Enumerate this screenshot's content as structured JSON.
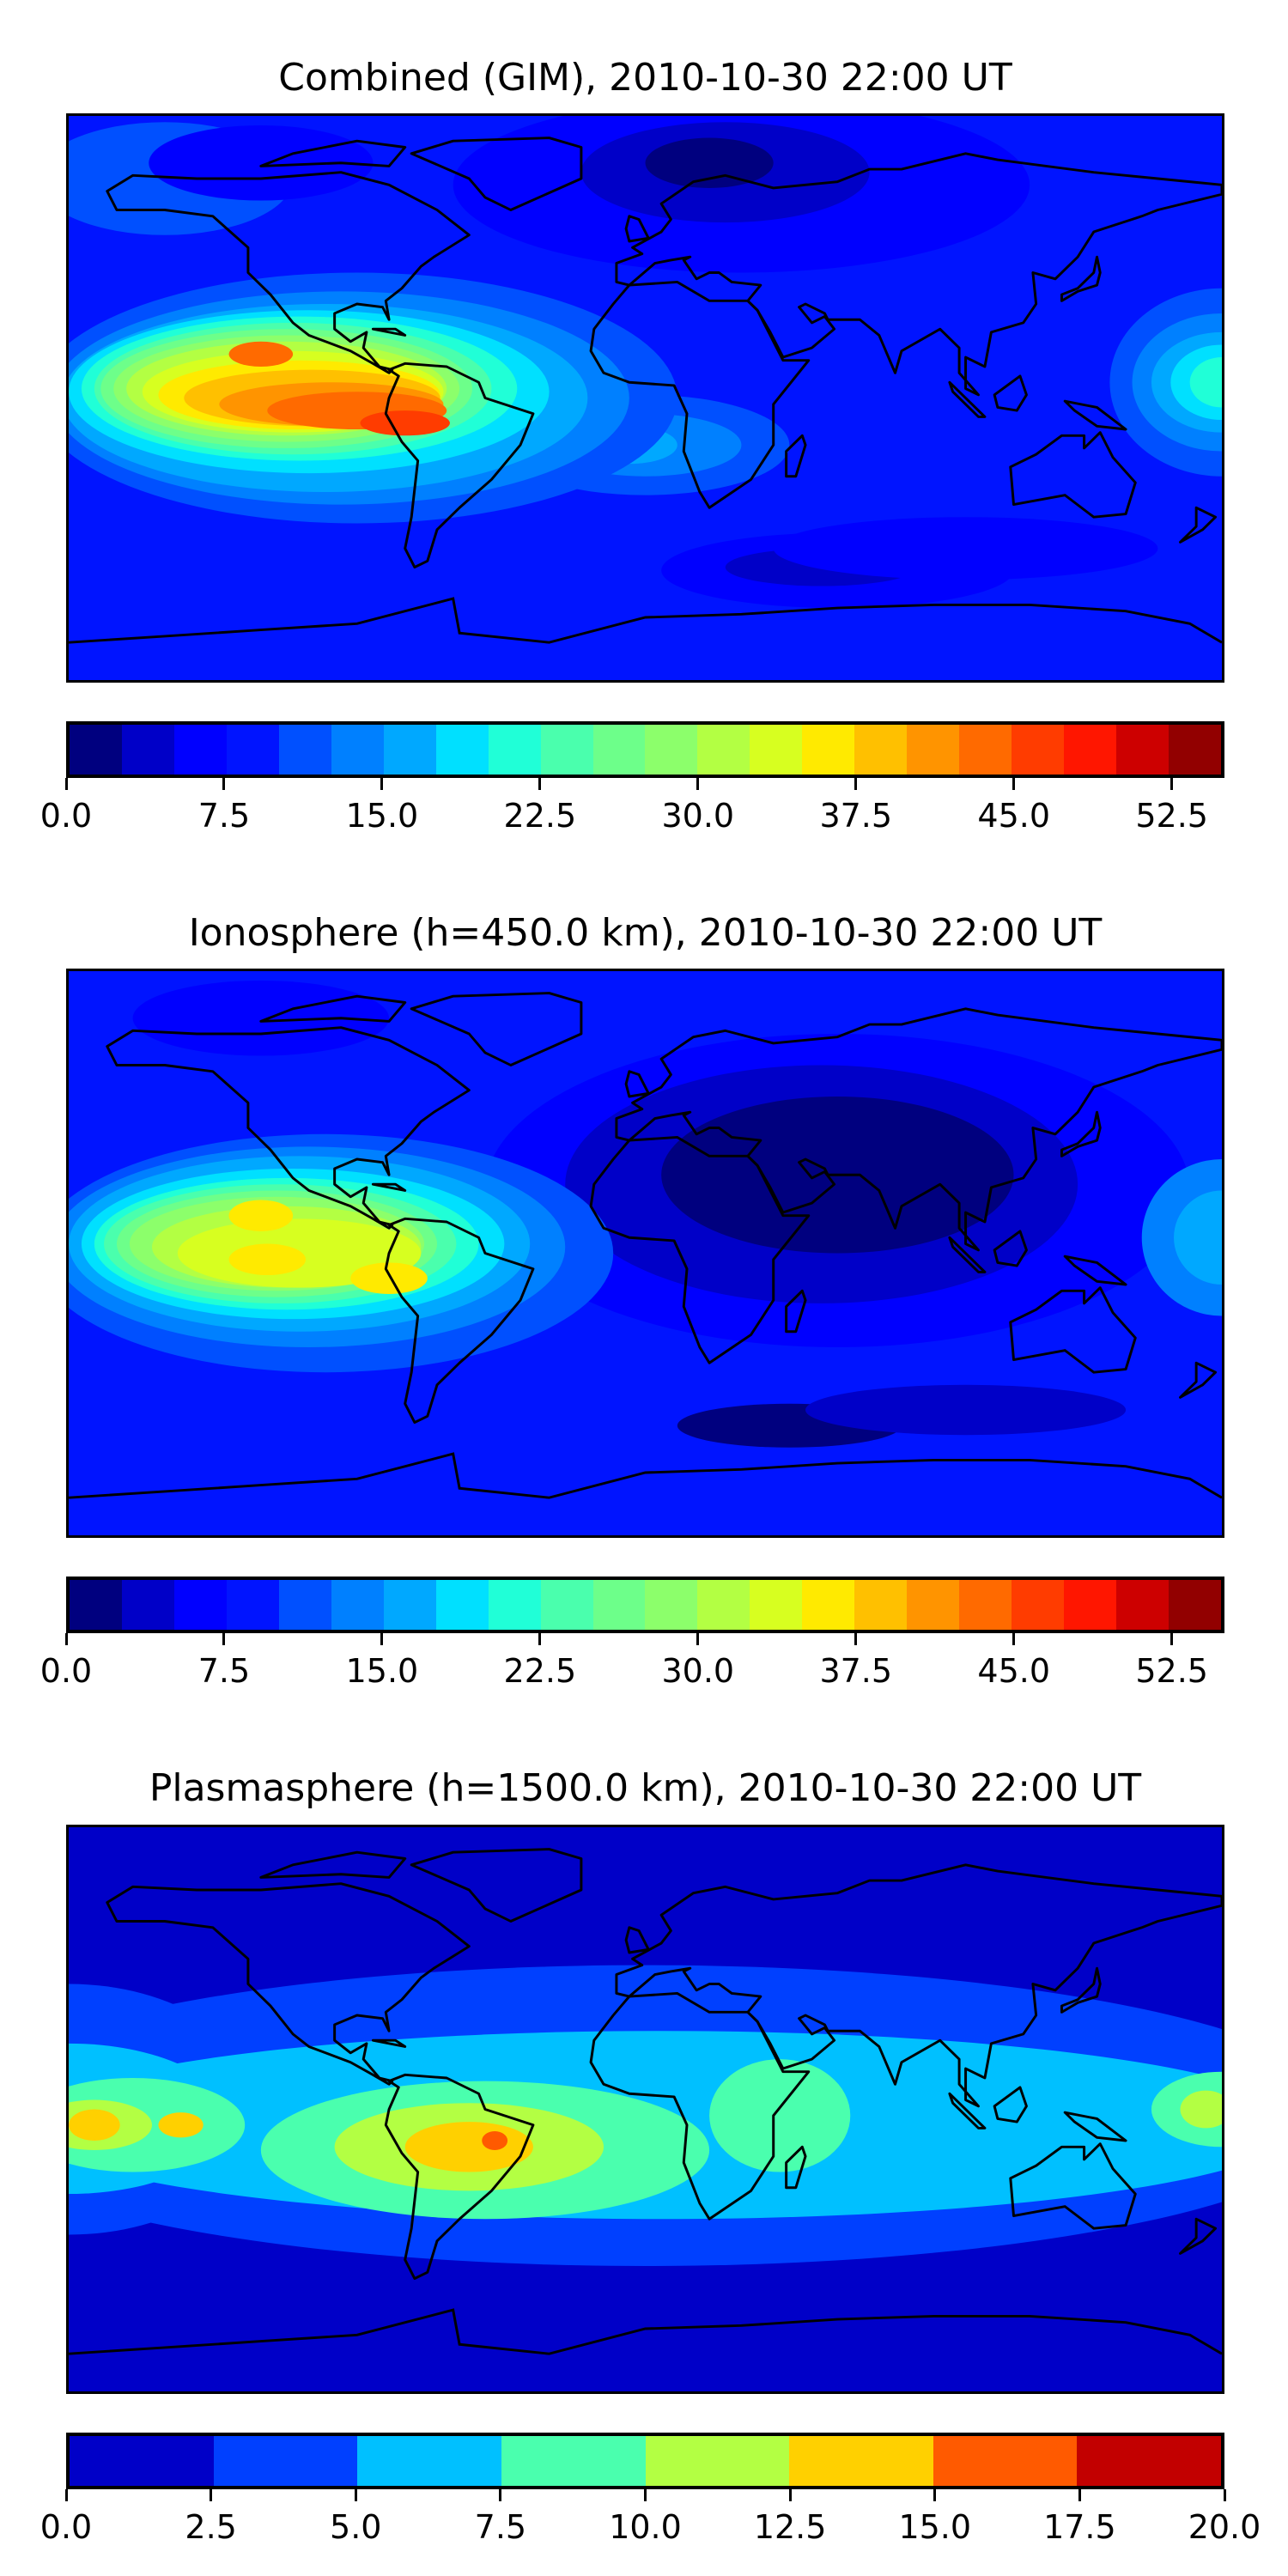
{
  "panels": [
    {
      "title": "Combined (GIM), 2010-10-30 22:00 UT",
      "colorbar": {
        "min": 0,
        "max": 55,
        "step": 2.5,
        "colors": [
          "#00007f",
          "#0000c8",
          "#0000ff",
          "#0014ff",
          "#0050ff",
          "#0080ff",
          "#00a8ff",
          "#00e0ff",
          "#20ffd7",
          "#4affad",
          "#6dff8a",
          "#8cff6b",
          "#b3ff43",
          "#d7ff20",
          "#ffea00",
          "#ffc000",
          "#ff9400",
          "#ff6a00",
          "#ff3c00",
          "#ff1600",
          "#cd0000",
          "#920000"
        ],
        "tick_labels": [
          "0.0",
          "7.5",
          "15.0",
          "22.5",
          "30.0",
          "37.5",
          "45.0",
          "52.5"
        ],
        "tick_values": [
          0,
          7.5,
          15,
          22.5,
          30,
          37.5,
          45,
          52.5
        ]
      }
    },
    {
      "title": "Ionosphere  (h=450.0 km), 2010-10-30 22:00 UT",
      "colorbar": {
        "min": 0,
        "max": 55,
        "step": 2.5,
        "colors": [
          "#00007f",
          "#0000c8",
          "#0000ff",
          "#0014ff",
          "#0050ff",
          "#0080ff",
          "#00a8ff",
          "#00e0ff",
          "#20ffd7",
          "#4affad",
          "#6dff8a",
          "#8cff6b",
          "#b3ff43",
          "#d7ff20",
          "#ffea00",
          "#ffc000",
          "#ff9400",
          "#ff6a00",
          "#ff3c00",
          "#ff1600",
          "#cd0000",
          "#920000"
        ],
        "tick_labels": [
          "0.0",
          "7.5",
          "15.0",
          "22.5",
          "30.0",
          "37.5",
          "45.0",
          "52.5"
        ],
        "tick_values": [
          0,
          7.5,
          15,
          22.5,
          30,
          37.5,
          45,
          52.5
        ]
      }
    },
    {
      "title": "Plasmasphere (h=1500.0 km), 2010-10-30 22:00 UT",
      "colorbar": {
        "min": 0,
        "max": 20,
        "step": 2.5,
        "colors": [
          "#0000c8",
          "#0040ff",
          "#00c0ff",
          "#4affae",
          "#b3ff43",
          "#ffd000",
          "#ff5a00",
          "#c20000"
        ],
        "tick_labels": [
          "0.0",
          "2.5",
          "5.0",
          "7.5",
          "10.0",
          "12.5",
          "15.0",
          "17.5",
          "20.0"
        ],
        "tick_values": [
          0,
          2.5,
          5,
          7.5,
          10,
          12.5,
          15,
          17.5,
          20
        ]
      }
    }
  ],
  "chart_data": [
    {
      "type": "heatmap",
      "title": "Combined (GIM), 2010-10-30 22:00 UT",
      "projection": "equirectangular world map",
      "value_range": [
        0,
        55
      ],
      "levels_step": 2.5,
      "features": [
        {
          "region": "eastern Pacific / South America",
          "peak_approx": 45
        },
        {
          "region": "western Pacific near dateline",
          "peak_approx": 25
        },
        {
          "region": "Eurasia north",
          "min_approx": 2.5
        },
        {
          "region": "Southern Ocean south of Africa",
          "min_approx": 2.5
        }
      ]
    },
    {
      "type": "heatmap",
      "title": "Ionosphere  (h=450.0 km), 2010-10-30 22:00 UT",
      "projection": "equirectangular world map",
      "value_range": [
        0,
        55
      ],
      "levels_step": 2.5,
      "features": [
        {
          "region": "eastern Pacific / South America",
          "peak_approx": 37.5
        },
        {
          "region": "Eurasia / Africa",
          "min_approx": 2.5
        }
      ]
    },
    {
      "type": "heatmap",
      "title": "Plasmasphere (h=1500.0 km), 2010-10-30 22:00 UT",
      "projection": "equirectangular world map",
      "value_range": [
        0,
        20
      ],
      "levels_step": 2.5,
      "features": [
        {
          "region": "Brazil",
          "peak_approx": 15
        },
        {
          "region": "central Pacific",
          "peak_approx": 12.5
        },
        {
          "region": "East Africa / Indian Ocean",
          "peak_approx": 10
        }
      ]
    }
  ]
}
